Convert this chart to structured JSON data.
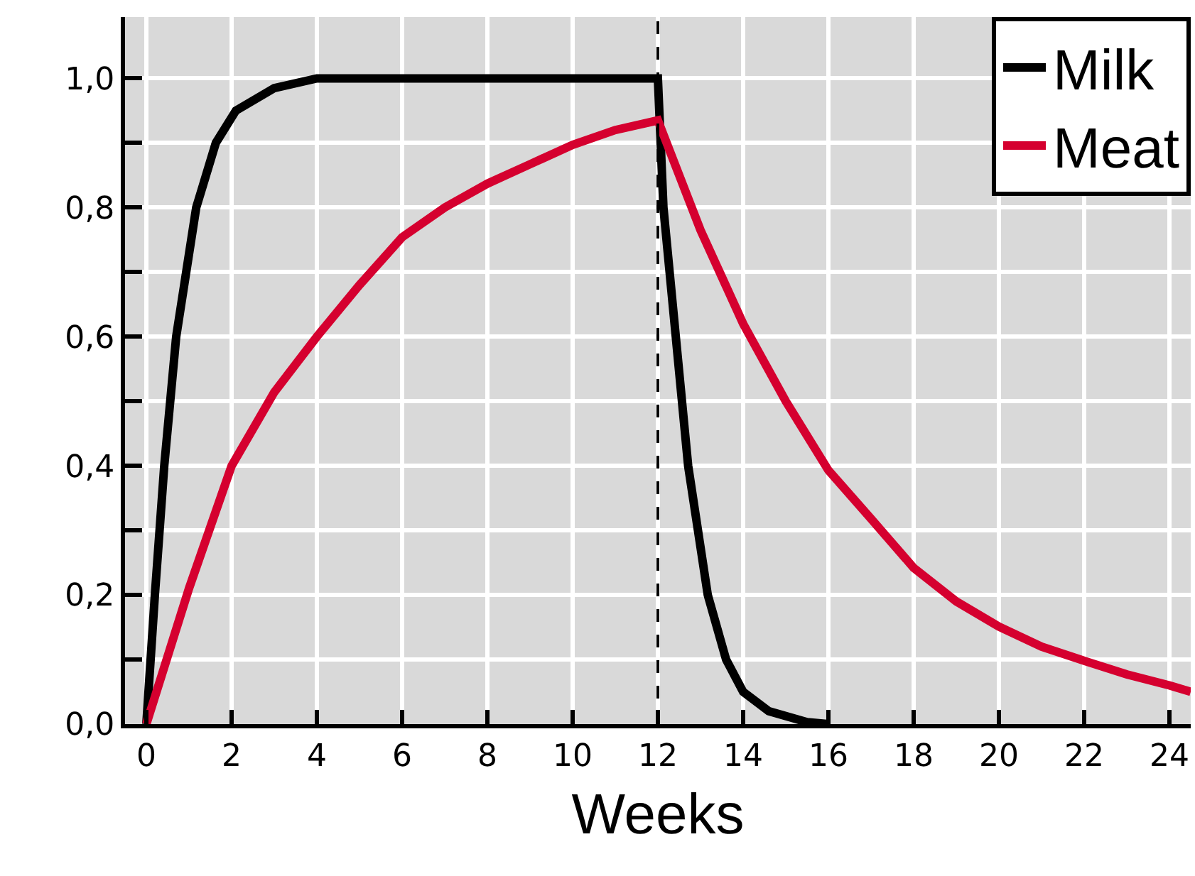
{
  "chart_data": {
    "type": "line",
    "xlabel": "Weeks",
    "series": [
      {
        "name": "Milk",
        "color": "#000000",
        "x": [
          0,
          0.2,
          0.42,
          0.7,
          1.17,
          1.63,
          2.1,
          3,
          4,
          12,
          12.13,
          12.42,
          12.71,
          13.17,
          13.6,
          14,
          14.6,
          15.5,
          16
        ],
        "values": [
          0,
          0.2,
          0.4,
          0.6,
          0.8,
          0.9,
          0.95,
          0.985,
          1.0,
          1.0,
          0.8,
          0.6,
          0.4,
          0.2,
          0.1,
          0.05,
          0.02,
          0.003,
          0
        ]
      },
      {
        "name": "Meat",
        "color": "#d5002f",
        "x": [
          0,
          0.5,
          1,
          2,
          3,
          4,
          5,
          6,
          7,
          8,
          9,
          10,
          11,
          12,
          13,
          14,
          15,
          16,
          17,
          18,
          19,
          20,
          21,
          22,
          23,
          24,
          24.5
        ],
        "values": [
          0,
          0.105,
          0.21,
          0.4,
          0.514,
          0.6,
          0.68,
          0.754,
          0.8,
          0.837,
          0.867,
          0.897,
          0.92,
          0.935,
          0.765,
          0.62,
          0.5,
          0.393,
          0.318,
          0.242,
          0.19,
          0.151,
          0.12,
          0.098,
          0.077,
          0.06,
          0.05
        ]
      }
    ],
    "xlim": [
      -0.5,
      24.5
    ],
    "xticks": [
      0,
      2,
      4,
      6,
      8,
      10,
      12,
      14,
      16,
      18,
      20,
      22,
      24
    ],
    "ylim": [
      0,
      1.095
    ],
    "yticks": [
      {
        "value": 0,
        "label": "0,0"
      },
      {
        "value": 0.1,
        "label": null
      },
      {
        "value": 0.2,
        "label": "0,2"
      },
      {
        "value": 0.3,
        "label": null
      },
      {
        "value": 0.4,
        "label": "0,4"
      },
      {
        "value": 0.5,
        "label": null
      },
      {
        "value": 0.6,
        "label": "0,6"
      },
      {
        "value": 0.7,
        "label": null
      },
      {
        "value": 0.8,
        "label": "0,8"
      },
      {
        "value": 0.9,
        "label": null
      },
      {
        "value": 1.0,
        "label": "1,0"
      }
    ],
    "ref_lines": [
      {
        "axis": "x",
        "value": 12,
        "color": "#000000",
        "line_style": "dashed"
      }
    ],
    "grid": true,
    "legend": "top right",
    "marker": "none",
    "line_style": "solid"
  }
}
